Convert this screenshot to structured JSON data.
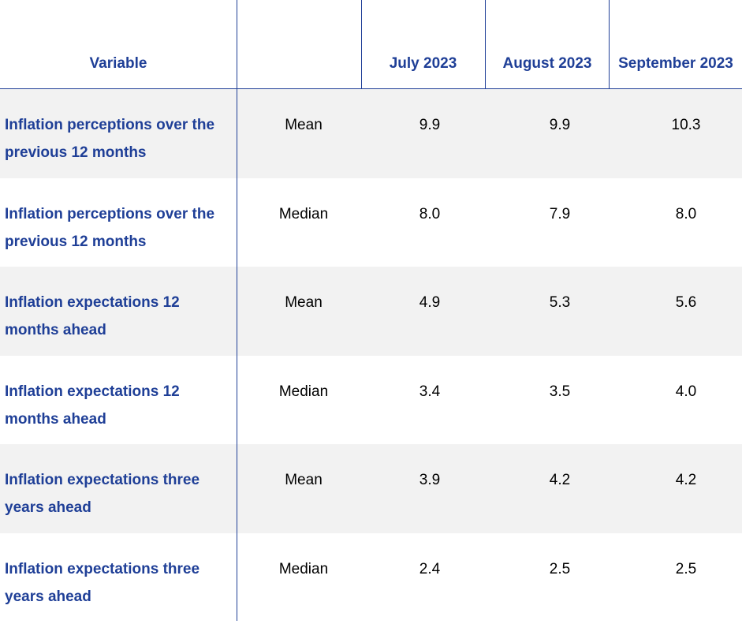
{
  "header": {
    "variable": "Variable",
    "statistic": "",
    "july": "July 2023",
    "august": "August 2023",
    "september": "September 2023"
  },
  "rows": [
    {
      "variable": "Inflation perceptions over the previous 12 months",
      "statistic": "Mean",
      "july": "9.9",
      "august": "9.9",
      "september": "10.3"
    },
    {
      "variable": "Inflation perceptions over the previous 12 months",
      "statistic": "Median",
      "july": "8.0",
      "august": "7.9",
      "september": "8.0"
    },
    {
      "variable": "Inflation expectations 12 months ahead",
      "statistic": "Mean",
      "july": "4.9",
      "august": "5.3",
      "september": "5.6"
    },
    {
      "variable": "Inflation expectations 12 months ahead",
      "statistic": "Median",
      "july": "3.4",
      "august": "3.5",
      "september": "4.0"
    },
    {
      "variable": "Inflation expectations three years ahead",
      "statistic": "Mean",
      "july": "3.9",
      "august": "4.2",
      "september": "4.2"
    },
    {
      "variable": "Inflation expectations three years ahead",
      "statistic": "Median",
      "july": "2.4",
      "august": "2.5",
      "september": "2.5"
    }
  ]
}
